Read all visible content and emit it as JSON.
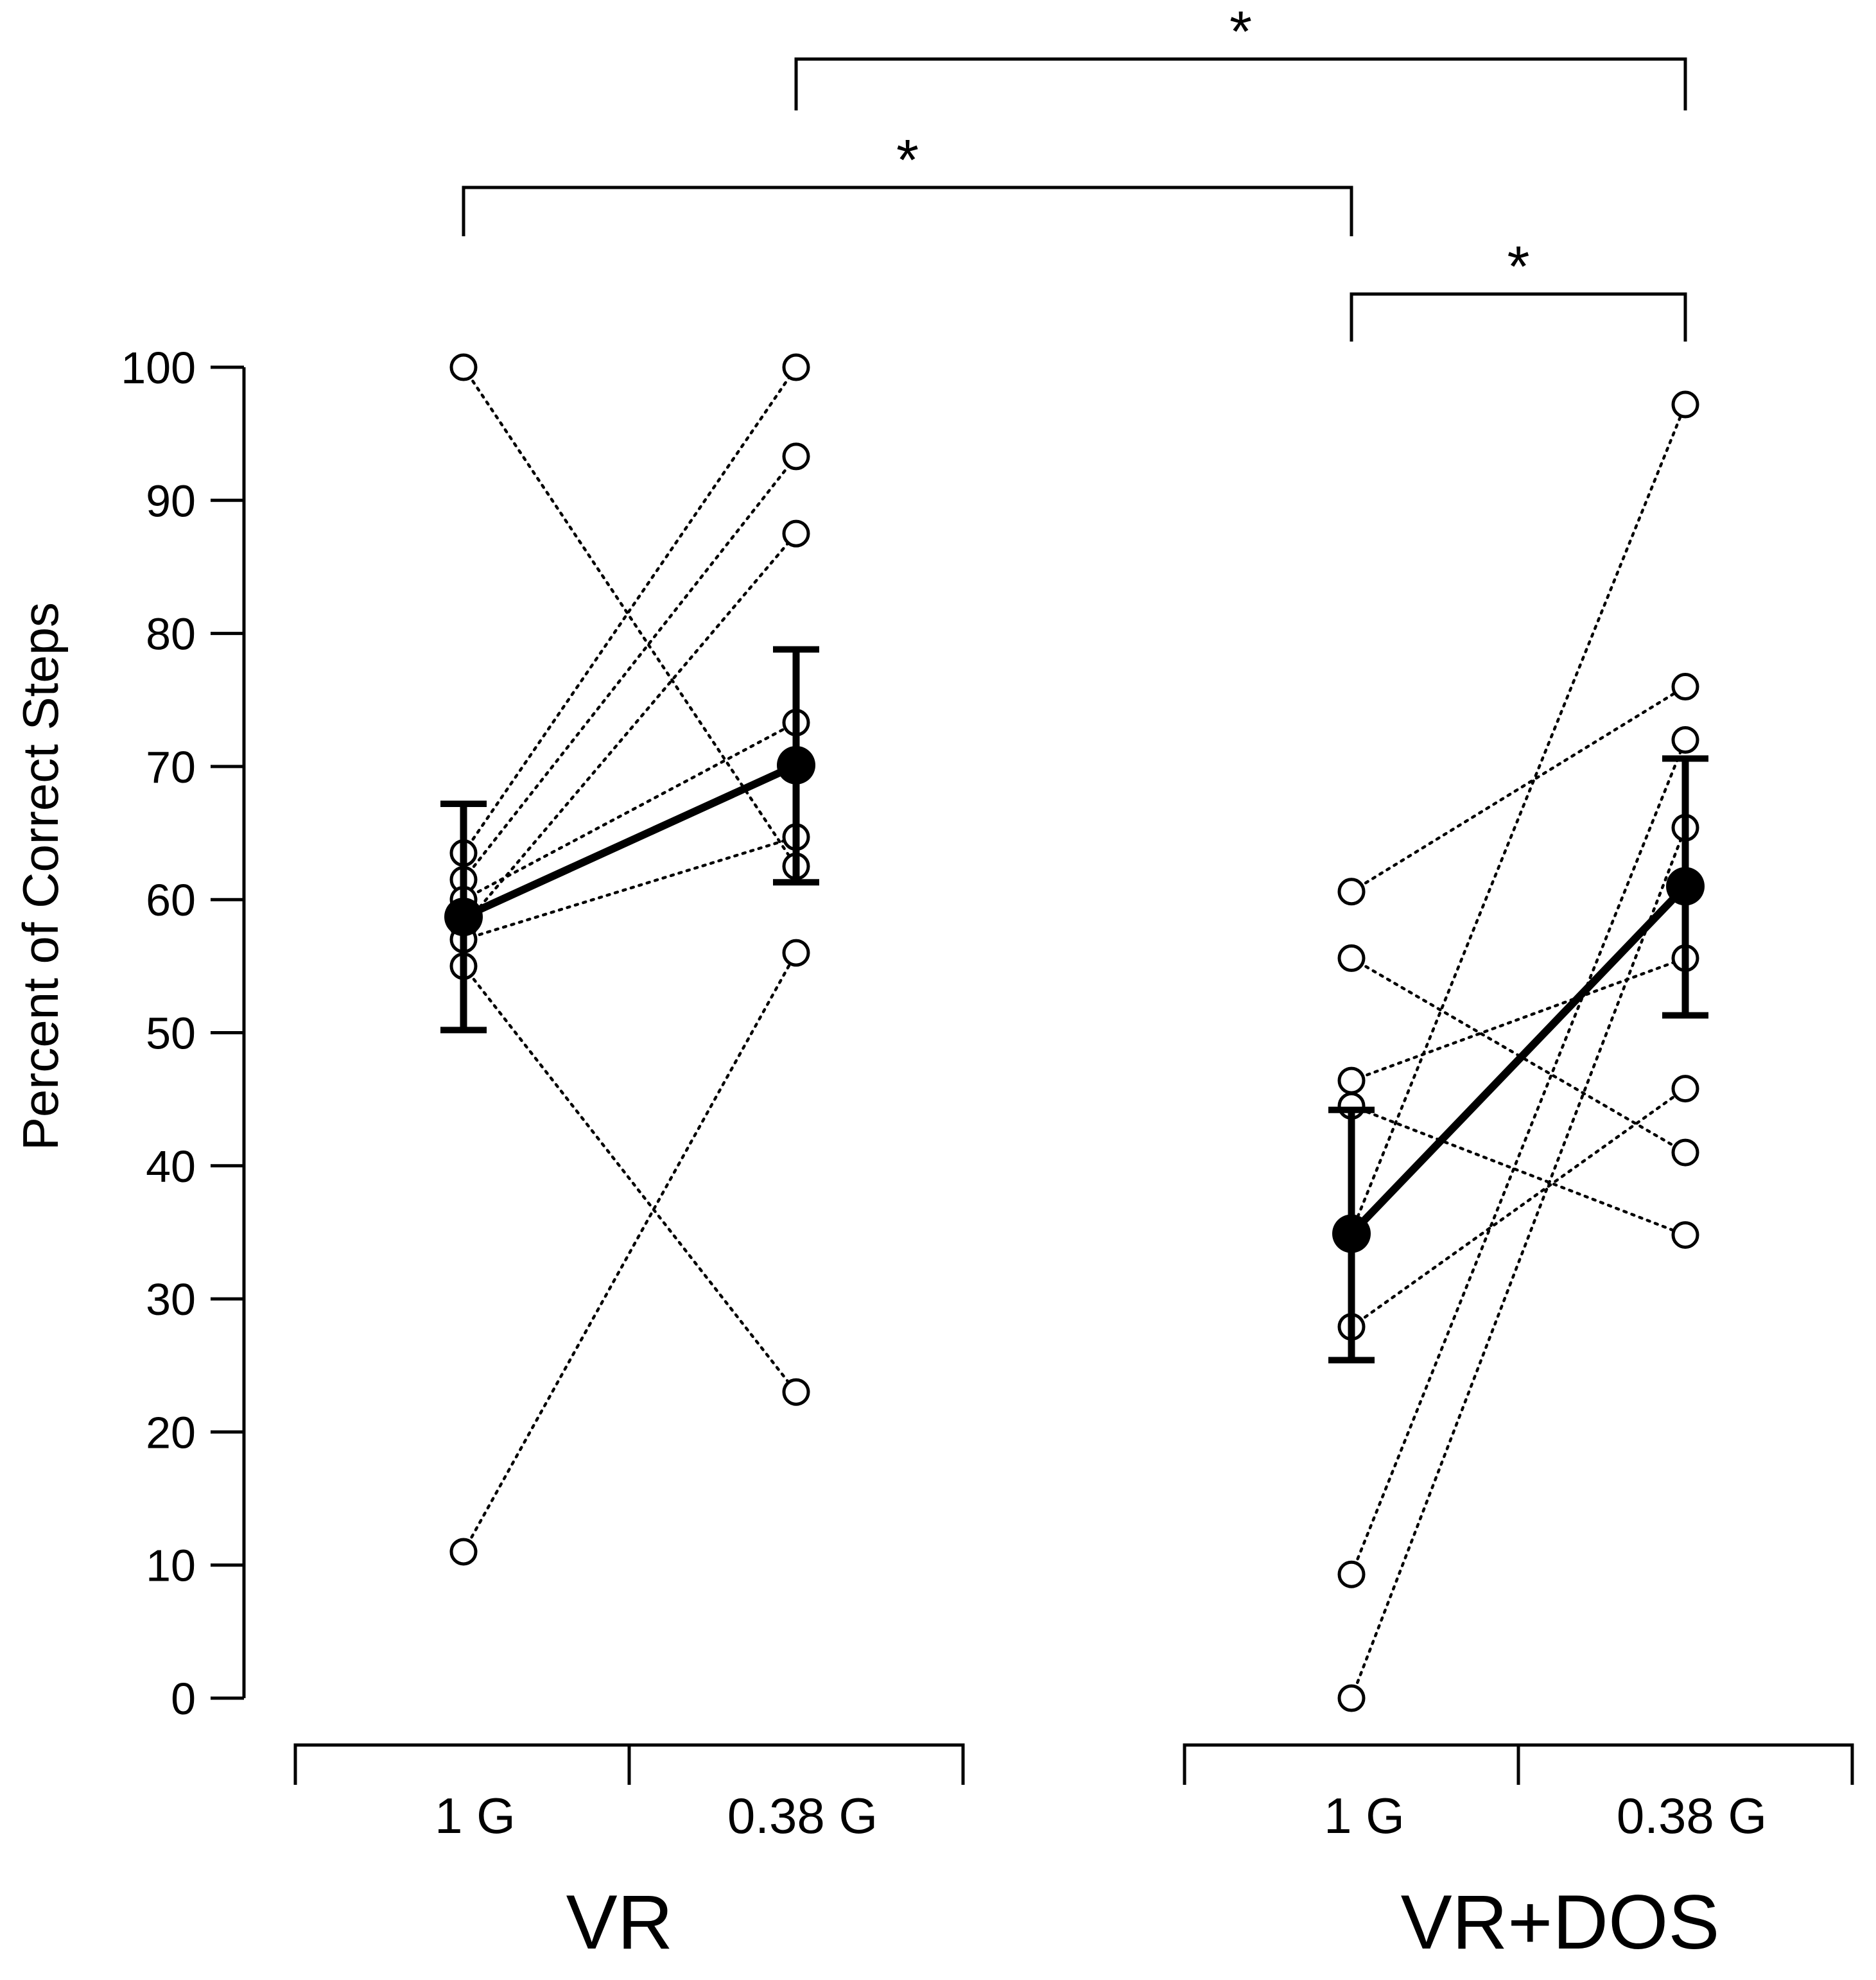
{
  "chart_data": {
    "type": "scatter",
    "title": "",
    "ylabel": "Percent of Correct Steps",
    "ylim": [
      0,
      100
    ],
    "yticks": [
      0,
      10,
      20,
      30,
      40,
      50,
      60,
      70,
      80,
      90,
      100
    ],
    "groups": [
      {
        "name": "VR",
        "conditions": [
          "1 G",
          "0.38 G"
        ],
        "subjects": [
          {
            "values": [
              100,
              62.5
            ]
          },
          {
            "values": [
              11,
              56
            ]
          },
          {
            "values": [
              55,
              23
            ]
          },
          {
            "values": [
              63.5,
              100
            ]
          },
          {
            "values": [
              61.5,
              93.3
            ]
          },
          {
            "values": [
              58,
              87.5
            ]
          },
          {
            "values": [
              60,
              73.3
            ]
          },
          {
            "values": [
              57,
              64.7
            ]
          }
        ],
        "mean": [
          58.7,
          70.1
        ],
        "error_low": [
          50.2,
          61.3
        ],
        "error_high": [
          67.2,
          78.8
        ]
      },
      {
        "name": "VR+DOS",
        "conditions": [
          "1 G",
          "0.38 G"
        ],
        "subjects": [
          {
            "values": [
              60.6,
              76
            ]
          },
          {
            "values": [
              55.6,
              41
            ]
          },
          {
            "values": [
              46.4,
              55.6
            ]
          },
          {
            "values": [
              44.5,
              34.8
            ]
          },
          {
            "values": [
              27.9,
              45.8
            ]
          },
          {
            "values": [
              9.3,
              72
            ]
          },
          {
            "values": [
              0,
              65.4
            ]
          },
          {
            "values": [
              35,
              97.2
            ]
          }
        ],
        "mean": [
          34.9,
          61.0
        ],
        "error_low": [
          25.4,
          51.3
        ],
        "error_high": [
          44.2,
          70.6
        ]
      }
    ],
    "significance": [
      {
        "from": "VR 0.38 G",
        "to": "VR+DOS 0.38 G",
        "label": "*"
      },
      {
        "from": "VR 1 G",
        "to": "VR+DOS 1 G",
        "label": "*"
      },
      {
        "from": "VR+DOS 1 G",
        "to": "VR+DOS 0.38 G",
        "label": "*"
      }
    ]
  }
}
